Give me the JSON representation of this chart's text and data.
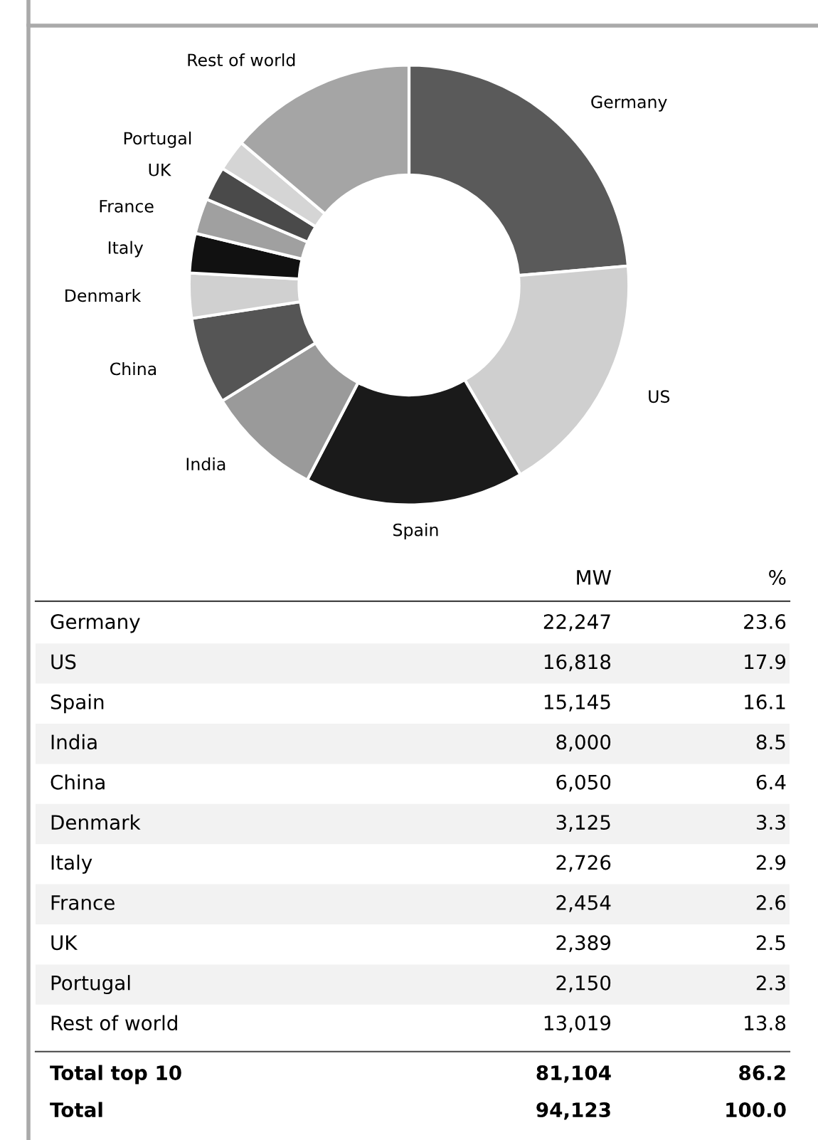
{
  "chart_data": [
    {
      "type": "donut",
      "categories": [
        "Germany",
        "US",
        "Spain",
        "India",
        "China",
        "Denmark",
        "Italy",
        "France",
        "UK",
        "Portugal",
        "Rest of world"
      ],
      "values": [
        23.6,
        17.9,
        16.1,
        8.5,
        6.4,
        3.3,
        2.9,
        2.6,
        2.5,
        2.3,
        13.8
      ],
      "colors": [
        "#5a5a5a",
        "#cfcfcf",
        "#1a1a1a",
        "#9a9a9a",
        "#555555",
        "#d0d0d0",
        "#111111",
        "#a0a0a0",
        "#4a4a4a",
        "#d5d5d5",
        "#a5a5a5"
      ]
    },
    {
      "type": "other",
      "categories": [
        "Germany",
        "US",
        "Spain",
        "India",
        "China",
        "Denmark",
        "Italy",
        "France",
        "UK",
        "Portugal",
        "Rest of world"
      ],
      "series": [
        {
          "name": "MW",
          "values": [
            22247,
            16818,
            15145,
            8000,
            6050,
            3125,
            2726,
            2454,
            2389,
            2150,
            13019
          ],
          "value_labels": [
            "22,247",
            "16,818",
            "15,145",
            "8,000",
            "6,050",
            "3,125",
            "2,726",
            "2,454",
            "2,389",
            "2,150",
            "13,019"
          ]
        },
        {
          "name": "%",
          "values": [
            23.6,
            17.9,
            16.1,
            8.5,
            6.4,
            3.3,
            2.9,
            2.6,
            2.5,
            2.3,
            13.8
          ],
          "value_labels": [
            "23.6",
            "17.9",
            "16.1",
            "8.5",
            "6.4",
            "3.3",
            "2.9",
            "2.6",
            "2.5",
            "2.3",
            "13.8"
          ]
        }
      ]
    },
    {
      "type": "other",
      "categories": [
        "Total top 10",
        "Total"
      ],
      "series": [
        {
          "values": [
            81104,
            94123
          ],
          "value_labels": [
            "81,104",
            "94,123"
          ]
        },
        {
          "values": [
            86.2,
            100.0
          ],
          "value_labels": [
            "86.2",
            "100.0"
          ]
        }
      ]
    }
  ]
}
